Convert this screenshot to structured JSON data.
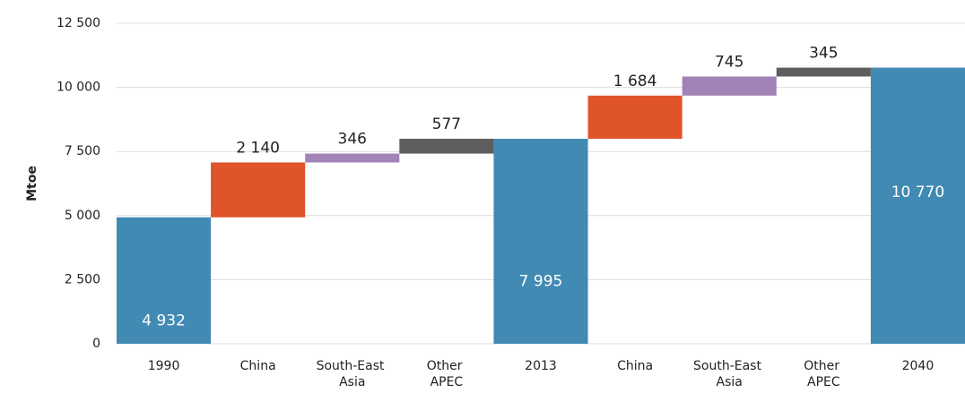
{
  "chart_data": {
    "type": "waterfall",
    "y_label": "Mtoe",
    "categories": [
      "1990",
      "China",
      "South-East Asia",
      "Other APEC",
      "2013",
      "China",
      "South-East Asia",
      "Other APEC",
      "2040"
    ],
    "values": [
      4932,
      2140,
      346,
      577,
      7995,
      1684,
      745,
      345,
      10770
    ],
    "value_labels": [
      "4 932",
      "2 140",
      "346",
      "577",
      "7 995",
      "1 684",
      "745",
      "345",
      "10 770"
    ],
    "colors": [
      "#418ab3",
      "#e0542a",
      "#a283b8",
      "#5e5e5e",
      "#418ab3",
      "#e0542a",
      "#a283b8",
      "#5e5e5e",
      "#418ab3"
    ],
    "total_color": "#418ab3",
    "ylim": [
      0,
      12500
    ],
    "yticks": [
      0,
      {
        "value": 2500,
        "label": "2 500"
      },
      {
        "value": 5000,
        "label": "5 000"
      },
      {
        "value": 7500,
        "label": "7 500"
      },
      {
        "value": 10000,
        "label": "10 000"
      },
      {
        "value": 12500,
        "label": "12 500"
      }
    ],
    "grid": true
  }
}
